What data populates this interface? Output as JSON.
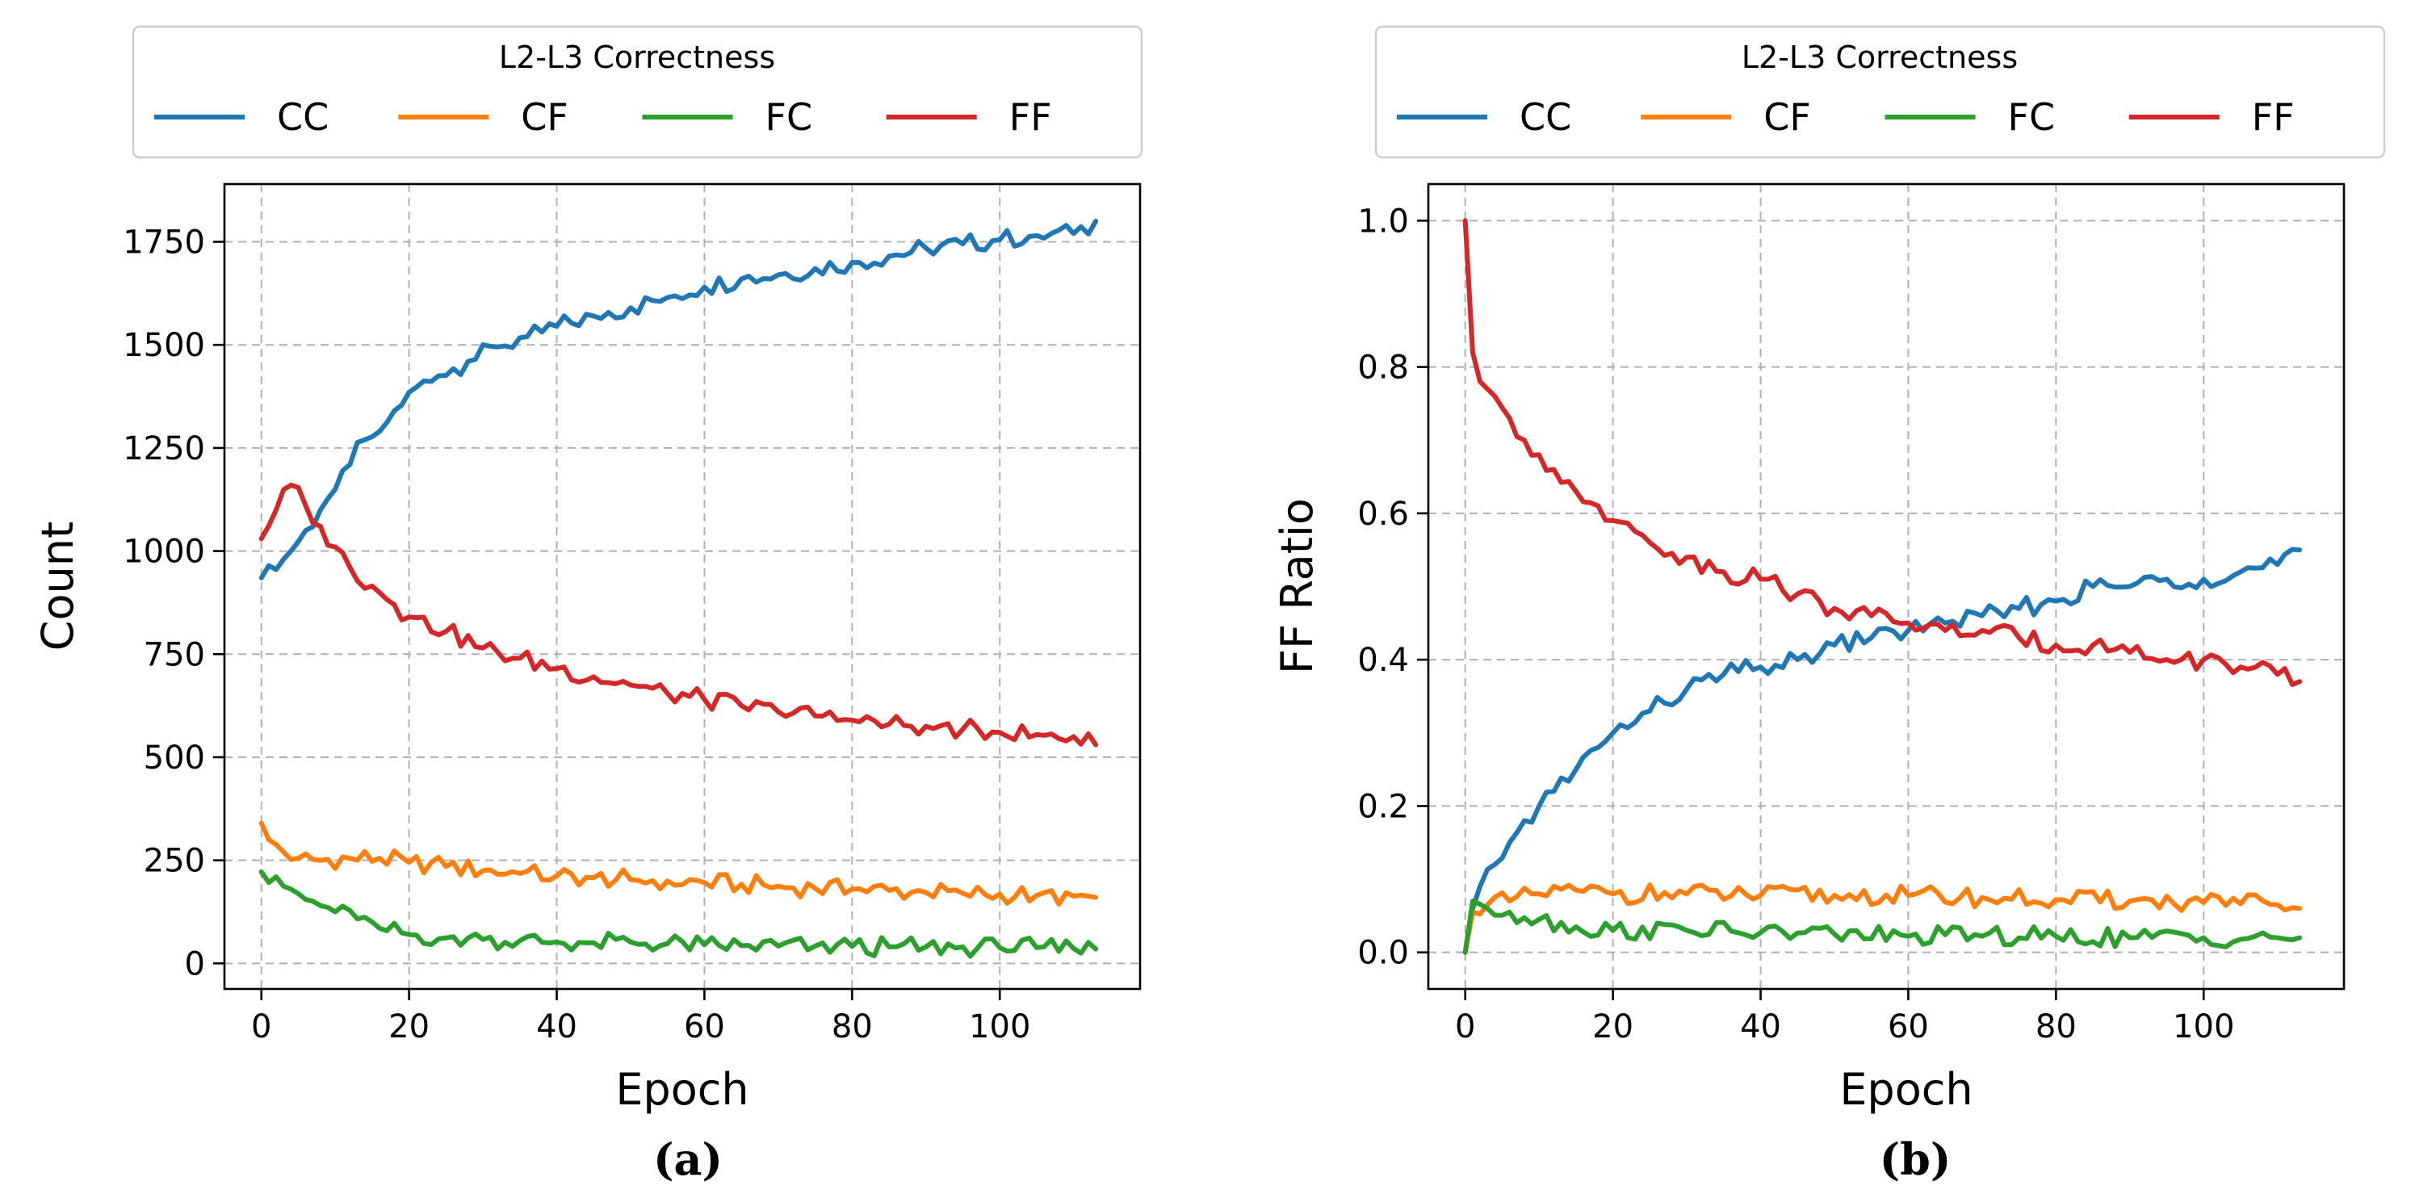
{
  "chart_data": [
    {
      "type": "line",
      "panel_label": "(a)",
      "xlabel": "Epoch",
      "ylabel": "Count",
      "xlim": [
        -5,
        119
      ],
      "ylim": [
        -62,
        1890
      ],
      "xticks": [
        0,
        20,
        40,
        60,
        80,
        100
      ],
      "yticks": [
        0,
        250,
        500,
        750,
        1000,
        1250,
        1500,
        1750
      ],
      "grid": true,
      "legend": {
        "title": "L2-L3 Correctness",
        "placement": "top-outside",
        "ncol": 4
      },
      "series": [
        {
          "name": "CC",
          "color": "#1f77b4",
          "keypoints": [
            [
              0,
              935
            ],
            [
              2,
              955
            ],
            [
              4,
              1000
            ],
            [
              6,
              1050
            ],
            [
              8,
              1100
            ],
            [
              10,
              1150
            ],
            [
              12,
              1210
            ],
            [
              14,
              1270
            ],
            [
              16,
              1290
            ],
            [
              18,
              1340
            ],
            [
              20,
              1385
            ],
            [
              24,
              1425
            ],
            [
              28,
              1460
            ],
            [
              32,
              1495
            ],
            [
              36,
              1520
            ],
            [
              40,
              1545
            ],
            [
              45,
              1570
            ],
            [
              50,
              1590
            ],
            [
              55,
              1615
            ],
            [
              60,
              1640
            ],
            [
              65,
              1660
            ],
            [
              70,
              1670
            ],
            [
              75,
              1685
            ],
            [
              80,
              1700
            ],
            [
              85,
              1715
            ],
            [
              90,
              1735
            ],
            [
              95,
              1745
            ],
            [
              100,
              1755
            ],
            [
              105,
              1765
            ],
            [
              110,
              1770
            ],
            [
              113,
              1800
            ]
          ]
        },
        {
          "name": "CF",
          "color": "#ff7f0e",
          "keypoints": [
            [
              0,
              340
            ],
            [
              1,
              300
            ],
            [
              3,
              270
            ],
            [
              5,
              255
            ],
            [
              8,
              250
            ],
            [
              12,
              255
            ],
            [
              16,
              255
            ],
            [
              20,
              245
            ],
            [
              25,
              235
            ],
            [
              30,
              225
            ],
            [
              35,
              218
            ],
            [
              40,
              212
            ],
            [
              45,
              208
            ],
            [
              50,
              203
            ],
            [
              55,
              200
            ],
            [
              60,
              196
            ],
            [
              65,
              192
            ],
            [
              70,
              187
            ],
            [
              75,
              182
            ],
            [
              80,
              180
            ],
            [
              85,
              177
            ],
            [
              90,
              172
            ],
            [
              95,
              170
            ],
            [
              100,
              168
            ],
            [
              105,
              165
            ],
            [
              110,
              163
            ],
            [
              113,
              160
            ]
          ]
        },
        {
          "name": "FC",
          "color": "#2ca02c",
          "keypoints": [
            [
              0,
              222
            ],
            [
              2,
              210
            ],
            [
              4,
              180
            ],
            [
              6,
              155
            ],
            [
              8,
              140
            ],
            [
              10,
              125
            ],
            [
              13,
              108
            ],
            [
              16,
              85
            ],
            [
              20,
              70
            ],
            [
              25,
              62
            ],
            [
              30,
              58
            ],
            [
              35,
              55
            ],
            [
              40,
              52
            ],
            [
              45,
              50
            ],
            [
              50,
              52
            ],
            [
              55,
              48
            ],
            [
              60,
              45
            ],
            [
              65,
              43
            ],
            [
              70,
              42
            ],
            [
              75,
              42
            ],
            [
              80,
              41
            ],
            [
              85,
              40
            ],
            [
              90,
              40
            ],
            [
              95,
              40
            ],
            [
              100,
              38
            ],
            [
              105,
              38
            ],
            [
              110,
              36
            ],
            [
              113,
              35
            ]
          ]
        },
        {
          "name": "FF",
          "color": "#d62728",
          "keypoints": [
            [
              0,
              1030
            ],
            [
              2,
              1100
            ],
            [
              4,
              1160
            ],
            [
              6,
              1110
            ],
            [
              8,
              1060
            ],
            [
              10,
              1010
            ],
            [
              12,
              960
            ],
            [
              15,
              915
            ],
            [
              18,
              870
            ],
            [
              20,
              840
            ],
            [
              25,
              805
            ],
            [
              30,
              765
            ],
            [
              35,
              740
            ],
            [
              40,
              715
            ],
            [
              45,
              695
            ],
            [
              50,
              675
            ],
            [
              55,
              655
            ],
            [
              60,
              640
            ],
            [
              65,
              625
            ],
            [
              70,
              610
            ],
            [
              75,
              600
            ],
            [
              80,
              590
            ],
            [
              85,
              580
            ],
            [
              90,
              575
            ],
            [
              95,
              568
            ],
            [
              100,
              560
            ],
            [
              105,
              555
            ],
            [
              110,
              550
            ],
            [
              113,
              530
            ]
          ]
        }
      ]
    },
    {
      "type": "line",
      "panel_label": "(b)",
      "xlabel": "Epoch",
      "ylabel": "FF Ratio",
      "xlim": [
        -5,
        119
      ],
      "ylim": [
        -0.05,
        1.05
      ],
      "xticks": [
        0,
        20,
        40,
        60,
        80,
        100
      ],
      "yticks": [
        0.0,
        0.2,
        0.4,
        0.6,
        0.8,
        1.0
      ],
      "grid": true,
      "legend": {
        "title": "L2-L3 Correctness",
        "placement": "top-outside",
        "ncol": 4
      },
      "series": [
        {
          "name": "CC",
          "color": "#1f77b4",
          "keypoints": [
            [
              0,
              0.0
            ],
            [
              1,
              0.06
            ],
            [
              2,
              0.09
            ],
            [
              4,
              0.12
            ],
            [
              6,
              0.15
            ],
            [
              8,
              0.18
            ],
            [
              10,
              0.2
            ],
            [
              12,
              0.22
            ],
            [
              15,
              0.25
            ],
            [
              18,
              0.28
            ],
            [
              20,
              0.3
            ],
            [
              25,
              0.33
            ],
            [
              30,
              0.36
            ],
            [
              35,
              0.38
            ],
            [
              40,
              0.39
            ],
            [
              45,
              0.4
            ],
            [
              50,
              0.42
            ],
            [
              55,
              0.43
            ],
            [
              60,
              0.44
            ],
            [
              65,
              0.45
            ],
            [
              70,
              0.46
            ],
            [
              75,
              0.47
            ],
            [
              80,
              0.48
            ],
            [
              85,
              0.5
            ],
            [
              90,
              0.5
            ],
            [
              95,
              0.51
            ],
            [
              100,
              0.51
            ],
            [
              105,
              0.52
            ],
            [
              110,
              0.53
            ],
            [
              113,
              0.55
            ]
          ]
        },
        {
          "name": "CF",
          "color": "#ff7f0e",
          "keypoints": [
            [
              0,
              0.0
            ],
            [
              1,
              0.055
            ],
            [
              3,
              0.065
            ],
            [
              6,
              0.07
            ],
            [
              10,
              0.08
            ],
            [
              15,
              0.085
            ],
            [
              20,
              0.08
            ],
            [
              30,
              0.08
            ],
            [
              40,
              0.078
            ],
            [
              50,
              0.078
            ],
            [
              60,
              0.078
            ],
            [
              70,
              0.075
            ],
            [
              80,
              0.072
            ],
            [
              90,
              0.07
            ],
            [
              100,
              0.068
            ],
            [
              110,
              0.065
            ],
            [
              113,
              0.06
            ]
          ]
        },
        {
          "name": "FC",
          "color": "#2ca02c",
          "keypoints": [
            [
              0,
              0.0
            ],
            [
              1,
              0.07
            ],
            [
              3,
              0.06
            ],
            [
              6,
              0.055
            ],
            [
              10,
              0.045
            ],
            [
              15,
              0.035
            ],
            [
              20,
              0.03
            ],
            [
              30,
              0.03
            ],
            [
              40,
              0.027
            ],
            [
              50,
              0.025
            ],
            [
              60,
              0.022
            ],
            [
              70,
              0.022
            ],
            [
              80,
              0.022
            ],
            [
              90,
              0.02
            ],
            [
              100,
              0.02
            ],
            [
              110,
              0.02
            ],
            [
              113,
              0.02
            ]
          ]
        },
        {
          "name": "FF",
          "color": "#d62728",
          "keypoints": [
            [
              0,
              1.0
            ],
            [
              1,
              0.82
            ],
            [
              2,
              0.78
            ],
            [
              4,
              0.76
            ],
            [
              6,
              0.73
            ],
            [
              8,
              0.7
            ],
            [
              10,
              0.68
            ],
            [
              12,
              0.66
            ],
            [
              15,
              0.63
            ],
            [
              18,
              0.61
            ],
            [
              20,
              0.59
            ],
            [
              25,
              0.56
            ],
            [
              30,
              0.54
            ],
            [
              35,
              0.52
            ],
            [
              40,
              0.51
            ],
            [
              45,
              0.49
            ],
            [
              50,
              0.47
            ],
            [
              55,
              0.46
            ],
            [
              60,
              0.45
            ],
            [
              65,
              0.44
            ],
            [
              70,
              0.44
            ],
            [
              75,
              0.43
            ],
            [
              80,
              0.42
            ],
            [
              85,
              0.42
            ],
            [
              90,
              0.41
            ],
            [
              95,
              0.4
            ],
            [
              100,
              0.4
            ],
            [
              105,
              0.39
            ],
            [
              110,
              0.38
            ],
            [
              113,
              0.37
            ]
          ]
        }
      ]
    }
  ]
}
